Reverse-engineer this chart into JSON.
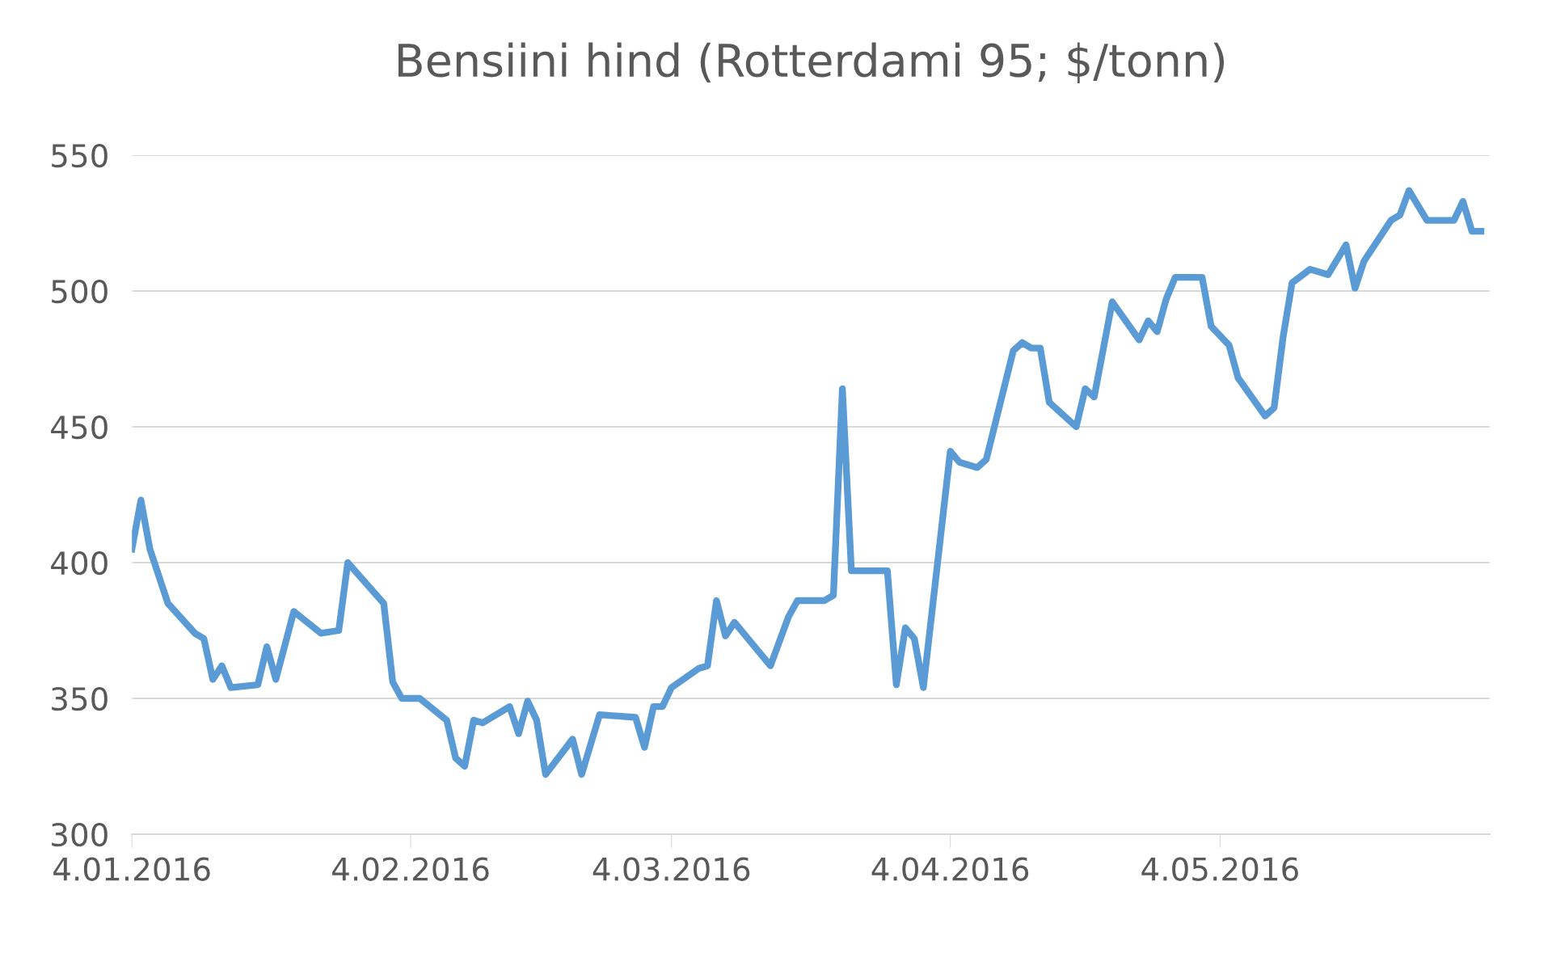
{
  "chart_data": {
    "type": "line",
    "title": "Bensiini hind (Rotterdami 95; $/tonn)",
    "x": [
      "2016-01-04",
      "2016-01-05",
      "2016-01-06",
      "2016-01-08",
      "2016-01-11",
      "2016-01-12",
      "2016-01-13",
      "2016-01-14",
      "2016-01-15",
      "2016-01-18",
      "2016-01-19",
      "2016-01-20",
      "2016-01-22",
      "2016-01-25",
      "2016-01-27",
      "2016-01-28",
      "2016-02-01",
      "2016-02-02",
      "2016-02-03",
      "2016-02-05",
      "2016-02-08",
      "2016-02-09",
      "2016-02-10",
      "2016-02-11",
      "2016-02-12",
      "2016-02-15",
      "2016-02-16",
      "2016-02-17",
      "2016-02-18",
      "2016-02-19",
      "2016-02-22",
      "2016-02-23",
      "2016-02-25",
      "2016-02-29",
      "2016-03-01",
      "2016-03-02",
      "2016-03-03",
      "2016-03-04",
      "2016-03-07",
      "2016-03-08",
      "2016-03-09",
      "2016-03-10",
      "2016-03-11",
      "2016-03-15",
      "2016-03-17",
      "2016-03-18",
      "2016-03-21",
      "2016-03-22",
      "2016-03-23",
      "2016-03-24",
      "2016-03-28",
      "2016-03-29",
      "2016-03-30",
      "2016-03-31",
      "2016-04-01",
      "2016-04-04",
      "2016-04-05",
      "2016-04-07",
      "2016-04-08",
      "2016-04-11",
      "2016-04-12",
      "2016-04-13",
      "2016-04-14",
      "2016-04-15",
      "2016-04-18",
      "2016-04-19",
      "2016-04-20",
      "2016-04-22",
      "2016-04-25",
      "2016-04-26",
      "2016-04-27",
      "2016-04-28",
      "2016-04-29",
      "2016-05-02",
      "2016-05-03",
      "2016-05-05",
      "2016-05-06",
      "2016-05-09",
      "2016-05-10",
      "2016-05-11",
      "2016-05-12",
      "2016-05-14",
      "2016-05-16",
      "2016-05-18",
      "2016-05-19",
      "2016-05-20",
      "2016-05-23",
      "2016-05-24",
      "2016-05-25",
      "2016-05-27",
      "2016-05-30",
      "2016-05-31",
      "2016-06-01",
      "2016-06-02"
    ],
    "series": [
      {
        "color": "#5b9bd5",
        "values": [
          405,
          423,
          405,
          385,
          374,
          372,
          357,
          362,
          354,
          355,
          369,
          357,
          382,
          374,
          375,
          400,
          385,
          356,
          350,
          350,
          342,
          328,
          325,
          342,
          341,
          347,
          337,
          349,
          342,
          322,
          335,
          322,
          344,
          343,
          332,
          347,
          347,
          354,
          361,
          362,
          386,
          373,
          378,
          362,
          380,
          386,
          386,
          388,
          464,
          397,
          397,
          355,
          376,
          372,
          354,
          441,
          437,
          435,
          438,
          478,
          481,
          479,
          479,
          459,
          450,
          464,
          461,
          496,
          482,
          489,
          485,
          497,
          505,
          505,
          487,
          480,
          468,
          454,
          457,
          483,
          503,
          508,
          506,
          517,
          501,
          511,
          526,
          528,
          537,
          526,
          526,
          533,
          522,
          522
        ]
      }
    ],
    "xlim": [
      "2016-01-04",
      "2016-06-03"
    ],
    "xticks": [
      {
        "value": "2016-01-04",
        "label": "4.01.2016"
      },
      {
        "value": "2016-02-04",
        "label": "4.02.2016"
      },
      {
        "value": "2016-03-04",
        "label": "4.03.2016"
      },
      {
        "value": "2016-04-04",
        "label": "4.04.2016"
      },
      {
        "value": "2016-05-04",
        "label": "4.05.2016"
      }
    ],
    "ylim": [
      300,
      550
    ],
    "yticks": [
      300,
      350,
      400,
      450,
      500,
      550
    ],
    "grid": "y",
    "legend": false,
    "marker": "none",
    "line_style": "solid"
  }
}
